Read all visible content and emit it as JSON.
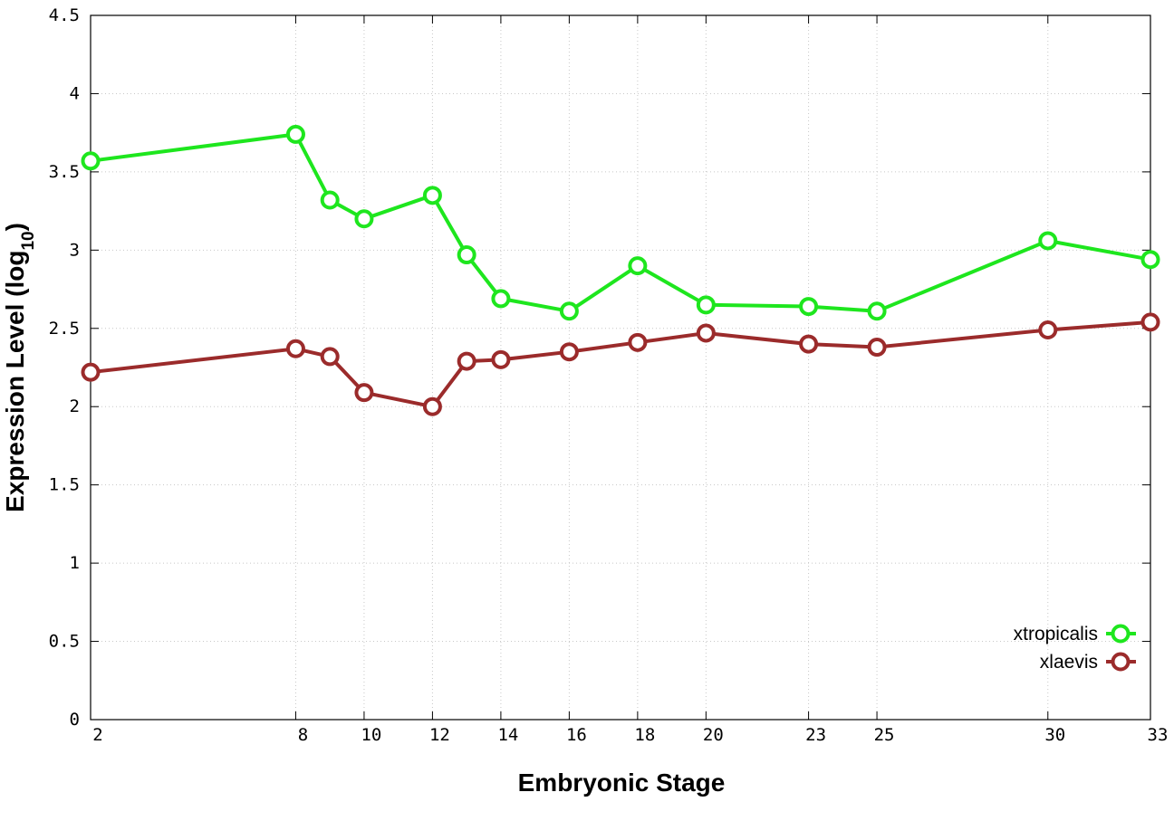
{
  "chart_data": {
    "type": "line",
    "title": "",
    "xlabel": "Embryonic Stage",
    "ylabel_main": "Expression Level (log",
    "ylabel_sub": "10",
    "ylabel_close": ")",
    "x": [
      2,
      8,
      9,
      10,
      12,
      13,
      14,
      16,
      18,
      20,
      23,
      25,
      30,
      33
    ],
    "x_tick_labels": [
      "2",
      "8",
      "10",
      "12",
      "14",
      "16",
      "18",
      "20",
      "23",
      "25",
      "30",
      "33"
    ],
    "xlim": [
      2,
      33
    ],
    "ylim": [
      0,
      4.5
    ],
    "y_tick_labels": [
      "0",
      "0.5",
      "1",
      "1.5",
      "2",
      "2.5",
      "3",
      "3.5",
      "4",
      "4.5"
    ],
    "y_ticks": [
      0,
      0.5,
      1,
      1.5,
      2,
      2.5,
      3,
      3.5,
      4,
      4.5
    ],
    "grid": true,
    "legend_position": "bottom-right",
    "series": [
      {
        "name": "xtropicalis",
        "color": "#1ee61e",
        "values": [
          3.57,
          3.74,
          3.32,
          3.2,
          3.35,
          2.97,
          2.69,
          2.61,
          2.9,
          2.65,
          2.64,
          2.61,
          3.06,
          2.94
        ]
      },
      {
        "name": "xlaevis",
        "color": "#9b2b2b",
        "values": [
          2.22,
          2.37,
          2.32,
          2.09,
          2.0,
          2.29,
          2.3,
          2.35,
          2.41,
          2.47,
          2.4,
          2.38,
          2.49,
          2.54
        ]
      }
    ]
  }
}
